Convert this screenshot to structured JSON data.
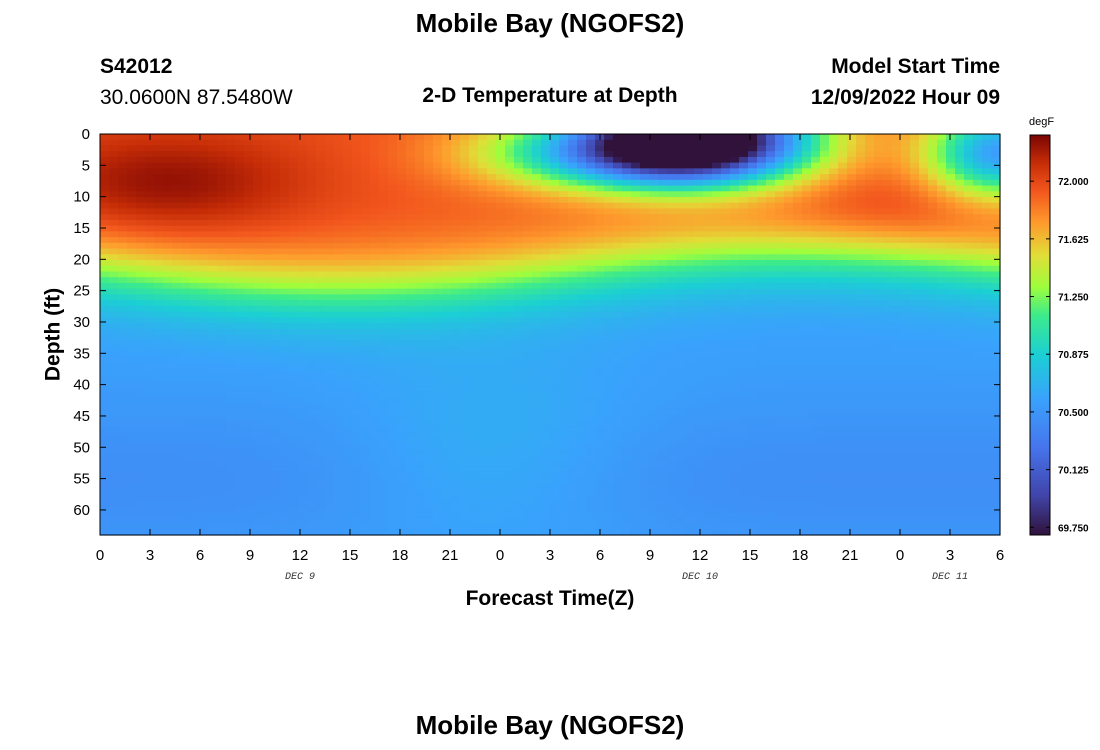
{
  "header": {
    "title": "Mobile Bay (NGOFS2)",
    "station_id": "S42012",
    "coordinates": "30.0600N  87.5480W",
    "plot_title": "2-D Temperature at Depth",
    "model_start_label": "Model Start Time",
    "model_start_value": "12/09/2022 Hour 09"
  },
  "footer": {
    "title": "Mobile Bay (NGOFS2)"
  },
  "chart_data": {
    "type": "heatmap",
    "title": "2-D Temperature at Depth",
    "xlabel": "Forecast Time(Z)",
    "ylabel": "Depth (ft)",
    "x_ticks": [
      "0",
      "3",
      "6",
      "9",
      "12",
      "15",
      "18",
      "21",
      "0",
      "3",
      "6",
      "9",
      "12",
      "15",
      "18",
      "21",
      "0",
      "3",
      "6"
    ],
    "x_range_hours": [
      0,
      54
    ],
    "day_labels": [
      {
        "label": "DEC 9",
        "hour": 12
      },
      {
        "label": "DEC 10",
        "hour": 36
      },
      {
        "label": "DEC 11",
        "hour": 51
      }
    ],
    "y_ticks": [
      "0",
      "5",
      "10",
      "15",
      "20",
      "25",
      "30",
      "35",
      "40",
      "45",
      "50",
      "55",
      "60"
    ],
    "ylim": [
      0,
      64
    ],
    "colorbar": {
      "unit": "degF",
      "range": [
        69.7,
        72.3
      ],
      "ticks": [
        "72.000",
        "71.625",
        "71.250",
        "70.875",
        "70.500",
        "70.125",
        "69.750"
      ]
    },
    "grid": false,
    "z_summary": "Warm layer (~71.5-72.3 degF) from surface to ~22 ft, warmest near 5-10 ft early on; cold surface intrusion (~69.8-70.5 degF) centered near DEC 10 12Z; cooler water (~70.5-70.8 degF) below 40 ft."
  }
}
